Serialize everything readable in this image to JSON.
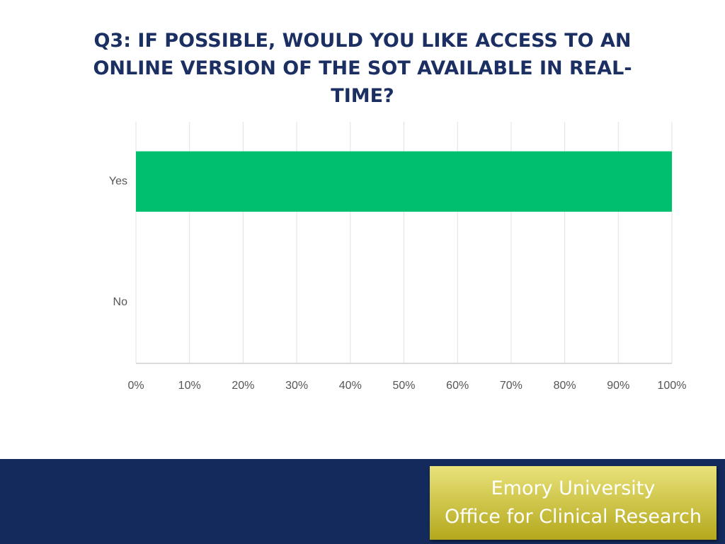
{
  "chart_data": {
    "type": "barh",
    "title": "Q3: IF POSSIBLE, WOULD YOU LIKE ACCESS TO AN ONLINE VERSION OF THE SOT AVAILABLE IN REAL-TIME?",
    "categories": [
      "Yes",
      "No"
    ],
    "values": [
      100,
      0
    ],
    "color": "#00bf6f",
    "xlim": [
      0,
      100
    ],
    "xticks": [
      {
        "value": 0,
        "label": "0%"
      },
      {
        "value": 10,
        "label": "10%"
      },
      {
        "value": 20,
        "label": "20%"
      },
      {
        "value": 30,
        "label": "30%"
      },
      {
        "value": 40,
        "label": "40%"
      },
      {
        "value": 50,
        "label": "50%"
      },
      {
        "value": 60,
        "label": "60%"
      },
      {
        "value": 70,
        "label": "70%"
      },
      {
        "value": 80,
        "label": "80%"
      },
      {
        "value": 90,
        "label": "90%"
      },
      {
        "value": 100,
        "label": "100%"
      }
    ],
    "grid": true
  },
  "footer": {
    "lines": [
      "Emory University",
      "Office for Clinical Research"
    ]
  }
}
